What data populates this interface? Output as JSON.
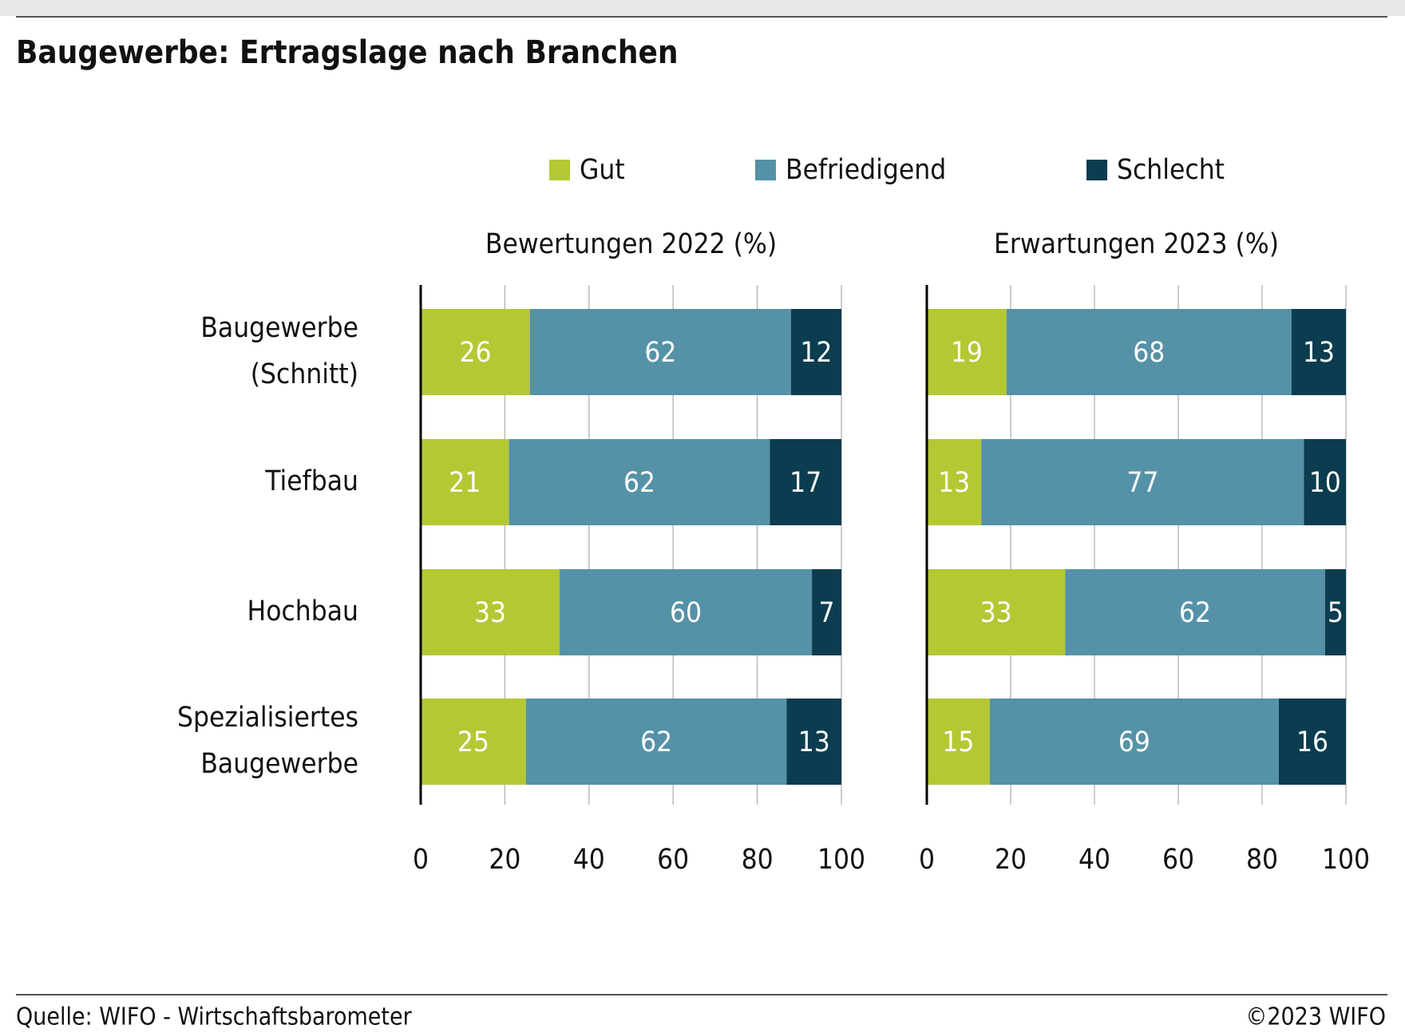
{
  "title": "Baugewerbe: Ertragslage nach Branchen",
  "source": "Quelle: WIFO - Wirtschaftsbarometer",
  "copyright": "©2023 WIFO",
  "chart_data": [
    {
      "type": "bar",
      "orientation": "horizontal",
      "stacked": true,
      "title": "Bewertungen 2022 (%)",
      "categories": [
        "Baugewerbe (Schnitt)",
        "Tiefbau",
        "Hochbau",
        "Spezialisiertes Baugewerbe"
      ],
      "series": [
        {
          "name": "Gut",
          "color": "#b4c834",
          "values": [
            26,
            21,
            33,
            25
          ]
        },
        {
          "name": "Befriedigend",
          "color": "#5592a7",
          "values": [
            62,
            62,
            60,
            62
          ]
        },
        {
          "name": "Schlecht",
          "color": "#0b3c4f",
          "values": [
            12,
            17,
            7,
            13
          ]
        }
      ],
      "xlim": [
        0,
        100
      ],
      "xticks": [
        0,
        20,
        40,
        60,
        80,
        100
      ],
      "grid": true
    },
    {
      "type": "bar",
      "orientation": "horizontal",
      "stacked": true,
      "title": "Erwartungen 2023 (%)",
      "series": [
        {
          "color": "#b4c834",
          "values": [
            19,
            13,
            33,
            15
          ]
        },
        {
          "color": "#5592a7",
          "values": [
            68,
            77,
            62,
            69
          ]
        },
        {
          "color": "#0b3c4f",
          "values": [
            13,
            10,
            5,
            16
          ]
        }
      ],
      "xlim": [
        0,
        100
      ],
      "xticks": [
        0,
        20,
        40,
        60,
        80,
        100
      ],
      "grid": true
    }
  ]
}
